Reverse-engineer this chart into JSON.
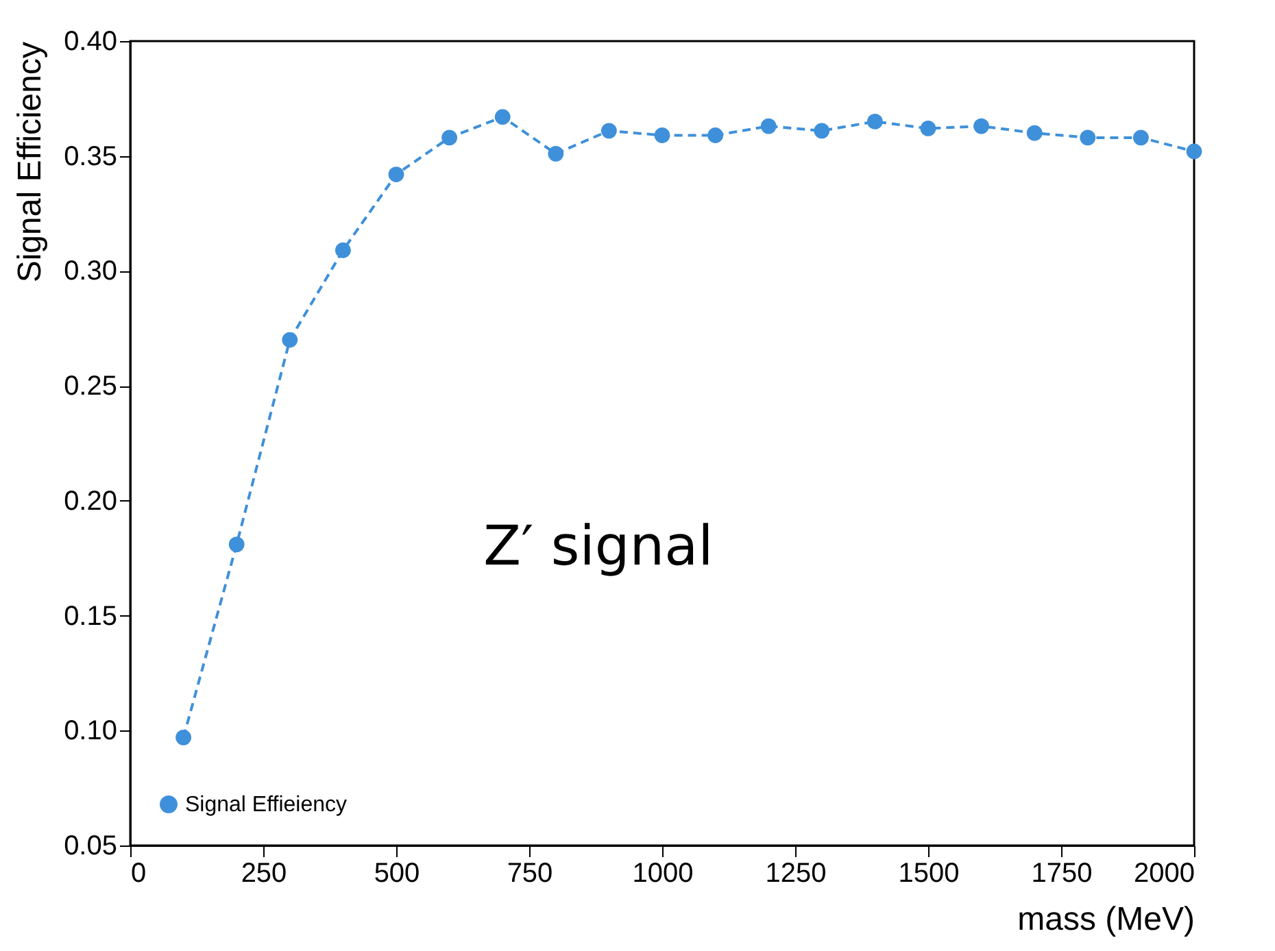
{
  "chart_data": {
    "type": "line",
    "xlabel": "mass (MeV)",
    "ylabel": "Signal Efficiency",
    "x": [
      100,
      200,
      300,
      400,
      500,
      600,
      700,
      800,
      900,
      1000,
      1100,
      1200,
      1300,
      1400,
      1500,
      1600,
      1700,
      1800,
      1900,
      2000
    ],
    "series": [
      {
        "name": "Signal Effieiency",
        "color": "#3f90da",
        "values": [
          0.097,
          0.181,
          0.27,
          0.309,
          0.342,
          0.358,
          0.367,
          0.351,
          0.361,
          0.359,
          0.359,
          0.363,
          0.361,
          0.365,
          0.362,
          0.363,
          0.36,
          0.358,
          0.358,
          0.352
        ]
      }
    ],
    "xlim": [
      0,
      2000
    ],
    "xticks": [
      0,
      250,
      500,
      750,
      1000,
      1250,
      1500,
      1750,
      2000
    ],
    "ylim": [
      0.05,
      0.4
    ],
    "yticks": [
      {
        "value": 0.05,
        "label": "0.05"
      },
      {
        "value": 0.1,
        "label": "0.10"
      },
      {
        "value": 0.15,
        "label": "0.15"
      },
      {
        "value": 0.2,
        "label": "0.20"
      },
      {
        "value": 0.25,
        "label": "0.25"
      },
      {
        "value": 0.3,
        "label": "0.30"
      },
      {
        "value": 0.35,
        "label": "0.35"
      },
      {
        "value": 0.4,
        "label": "0.40"
      }
    ],
    "annotations": [
      "Z′ signal"
    ],
    "grid": false,
    "legend": "bottom left",
    "marker": "circle",
    "line_style": "dashed"
  }
}
